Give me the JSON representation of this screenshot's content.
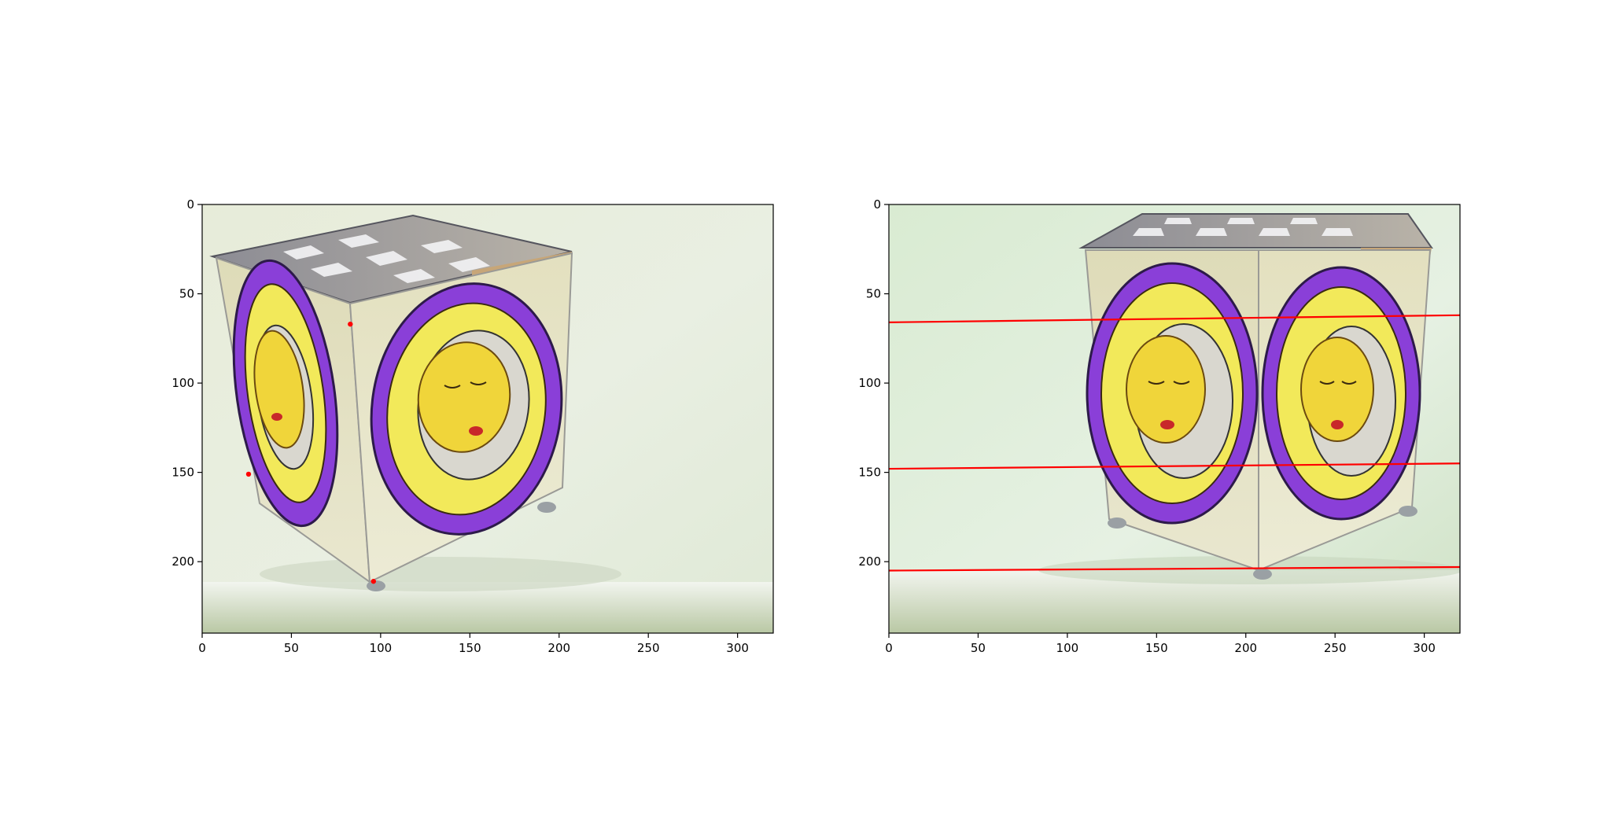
{
  "chart_data": [
    {
      "type": "image-scatter",
      "image_description": "photo of a cube-shaped box with checkerboard top and painted sun/moon faces on its sides",
      "xlim": [
        0,
        320
      ],
      "ylim": [
        240,
        0
      ],
      "xticks": [
        0,
        50,
        100,
        150,
        200,
        250,
        300
      ],
      "yticks": [
        0,
        50,
        100,
        150,
        200
      ],
      "points": [
        {
          "x": 83,
          "y": 67
        },
        {
          "x": 26,
          "y": 151
        },
        {
          "x": 96,
          "y": 211
        }
      ],
      "point_color": "#ff0000"
    },
    {
      "type": "image-lines",
      "image_description": "the same cube box photographed from a frontal viewpoint",
      "xlim": [
        0,
        320
      ],
      "ylim": [
        240,
        0
      ],
      "xticks": [
        0,
        50,
        100,
        150,
        200,
        250,
        300
      ],
      "yticks": [
        0,
        50,
        100,
        150,
        200
      ],
      "lines": [
        {
          "x": [
            0,
            320
          ],
          "y": [
            66,
            62
          ]
        },
        {
          "x": [
            0,
            320
          ],
          "y": [
            148,
            145
          ]
        },
        {
          "x": [
            0,
            320
          ],
          "y": [
            205,
            203
          ]
        }
      ],
      "line_color": "#ff0000"
    }
  ]
}
